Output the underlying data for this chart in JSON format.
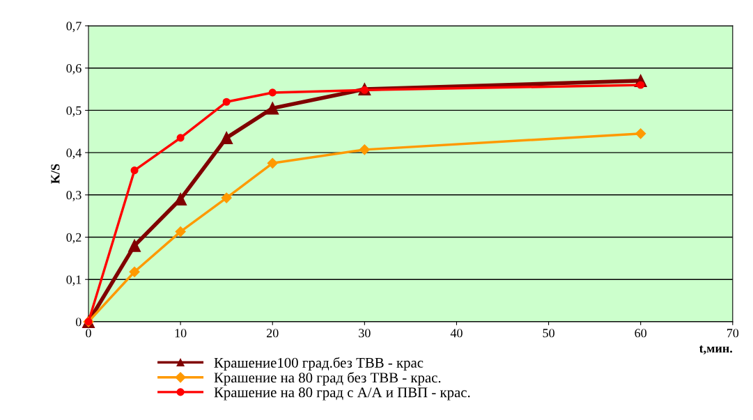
{
  "chart_data": {
    "type": "line",
    "xlabel": "t,мин.",
    "ylabel": "K/S",
    "x": [
      0,
      5,
      10,
      15,
      20,
      30,
      60
    ],
    "series": [
      {
        "name": "Крашение100 град.без ТВВ - крас",
        "color": "#800000",
        "marker": "triangle",
        "values": [
          0,
          0.18,
          0.29,
          0.435,
          0.505,
          0.55,
          0.57
        ]
      },
      {
        "name": "Крашение на 80 град без ТВВ - крас.",
        "color": "#ff9900",
        "marker": "diamond",
        "values": [
          0,
          0.118,
          0.213,
          0.293,
          0.375,
          0.407,
          0.445
        ]
      },
      {
        "name": "Крашение на 80 град с А/А и ПВП - крас.",
        "color": "#ff0000",
        "marker": "circle",
        "values": [
          0,
          0.358,
          0.435,
          0.52,
          0.542,
          0.548,
          0.56
        ]
      }
    ],
    "xlim": [
      0,
      70
    ],
    "xticks": [
      0,
      10,
      20,
      30,
      40,
      50,
      60,
      70
    ],
    "ylim": [
      0,
      0.7
    ],
    "yticks": [
      0,
      {
        "value": 0.1,
        "label": "0,1"
      },
      {
        "value": 0.2,
        "label": "0,2"
      },
      {
        "value": 0.3,
        "label": "0,3"
      },
      {
        "value": 0.4,
        "label": "0,4"
      },
      {
        "value": 0.5,
        "label": "0,5"
      },
      {
        "value": 0.6,
        "label": "0,6"
      },
      {
        "value": 0.7,
        "label": "0,7"
      }
    ],
    "grid": "y",
    "legend": "bottom",
    "line_style": "solid"
  }
}
